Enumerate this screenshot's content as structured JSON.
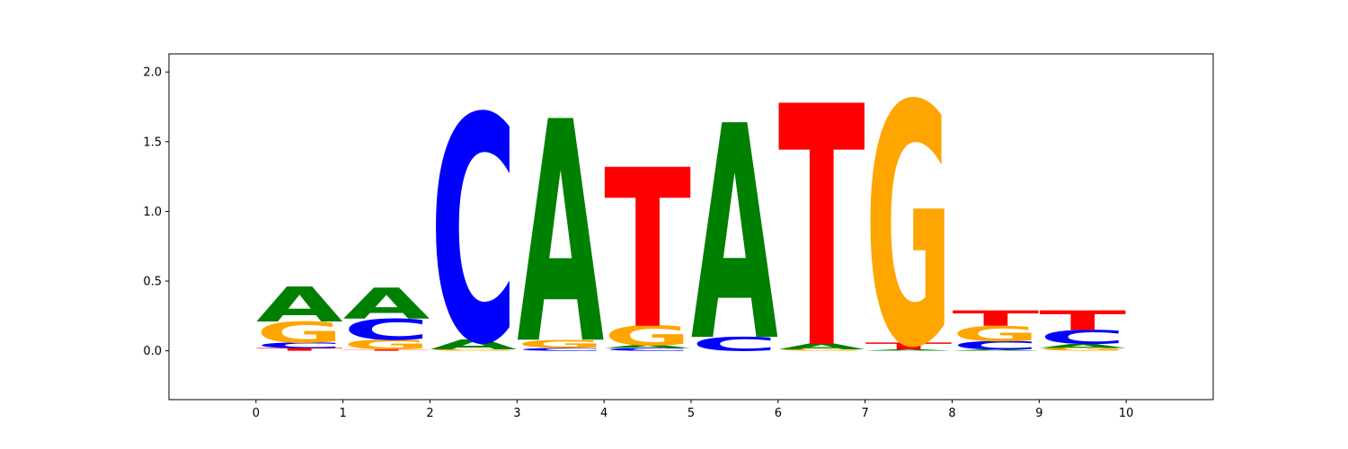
{
  "chart_data": {
    "type": "sequence-logo",
    "title": "",
    "xlabel": "",
    "ylabel": "",
    "xlim": [
      -1,
      11
    ],
    "ylim": [
      -0.35,
      2.13
    ],
    "x_ticks": [
      "0",
      "1",
      "2",
      "3",
      "4",
      "5",
      "6",
      "7",
      "8",
      "9",
      "10"
    ],
    "y_ticks": [
      "0.0",
      "0.5",
      "1.0",
      "1.5",
      "2.0"
    ],
    "colors": {
      "A": "#008000",
      "C": "#0000ff",
      "G": "#ffa500",
      "T": "#ff0000"
    },
    "positions": [
      {
        "start": 0,
        "letters": [
          {
            "base": "T",
            "height": 0.02
          },
          {
            "base": "C",
            "height": 0.04
          },
          {
            "base": "G",
            "height": 0.15
          },
          {
            "base": "A",
            "height": 0.25
          }
        ]
      },
      {
        "start": 1,
        "letters": [
          {
            "base": "T",
            "height": 0.01
          },
          {
            "base": "G",
            "height": 0.07
          },
          {
            "base": "C",
            "height": 0.15
          },
          {
            "base": "A",
            "height": 0.22
          }
        ]
      },
      {
        "start": 2,
        "letters": [
          {
            "base": "G",
            "height": 0.01
          },
          {
            "base": "A",
            "height": 0.07
          },
          {
            "base": "C",
            "height": 1.62
          }
        ]
      },
      {
        "start": 3,
        "letters": [
          {
            "base": "C",
            "height": 0.02
          },
          {
            "base": "G",
            "height": 0.06
          },
          {
            "base": "A",
            "height": 1.59
          }
        ]
      },
      {
        "start": 4,
        "letters": [
          {
            "base": "C",
            "height": 0.02
          },
          {
            "base": "A",
            "height": 0.02
          },
          {
            "base": "G",
            "height": 0.14
          },
          {
            "base": "T",
            "height": 1.14
          }
        ]
      },
      {
        "start": 5,
        "letters": [
          {
            "base": "C",
            "height": 0.1
          },
          {
            "base": "A",
            "height": 1.54
          }
        ]
      },
      {
        "start": 6,
        "letters": [
          {
            "base": "G",
            "height": 0.01
          },
          {
            "base": "A",
            "height": 0.04
          },
          {
            "base": "T",
            "height": 1.73
          }
        ]
      },
      {
        "start": 7,
        "letters": [
          {
            "base": "A",
            "height": 0.01
          },
          {
            "base": "T",
            "height": 0.05
          },
          {
            "base": "G",
            "height": 1.73
          }
        ]
      },
      {
        "start": 8,
        "letters": [
          {
            "base": "A",
            "height": 0.01
          },
          {
            "base": "C",
            "height": 0.06
          },
          {
            "base": "G",
            "height": 0.11
          },
          {
            "base": "T",
            "height": 0.11
          }
        ]
      },
      {
        "start": 9,
        "letters": [
          {
            "base": "G",
            "height": 0.02
          },
          {
            "base": "A",
            "height": 0.03
          },
          {
            "base": "C",
            "height": 0.1
          },
          {
            "base": "T",
            "height": 0.14
          }
        ]
      }
    ]
  }
}
